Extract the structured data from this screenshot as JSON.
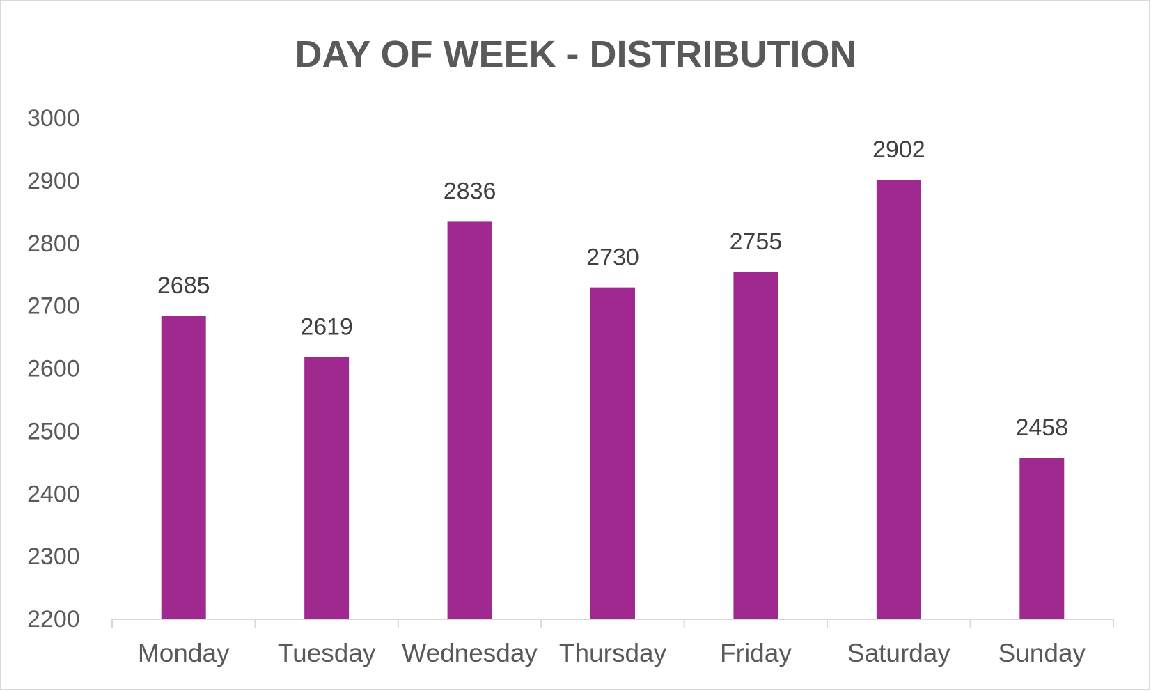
{
  "chart_data": {
    "type": "bar",
    "title": "DAY OF WEEK - DISTRIBUTION",
    "xlabel": "",
    "ylabel": "",
    "categories": [
      "Monday",
      "Tuesday",
      "Wednesday",
      "Thursday",
      "Friday",
      "Saturday",
      "Sunday"
    ],
    "values": [
      2685,
      2619,
      2836,
      2730,
      2755,
      2902,
      2458
    ],
    "ylim": [
      2200,
      3000
    ],
    "yticks": [
      2200,
      2300,
      2400,
      2500,
      2600,
      2700,
      2800,
      2900,
      3000
    ],
    "grid": false,
    "legend": "none",
    "colors": {
      "bar": "#a0298f",
      "axis": "#d9d9d9"
    }
  }
}
